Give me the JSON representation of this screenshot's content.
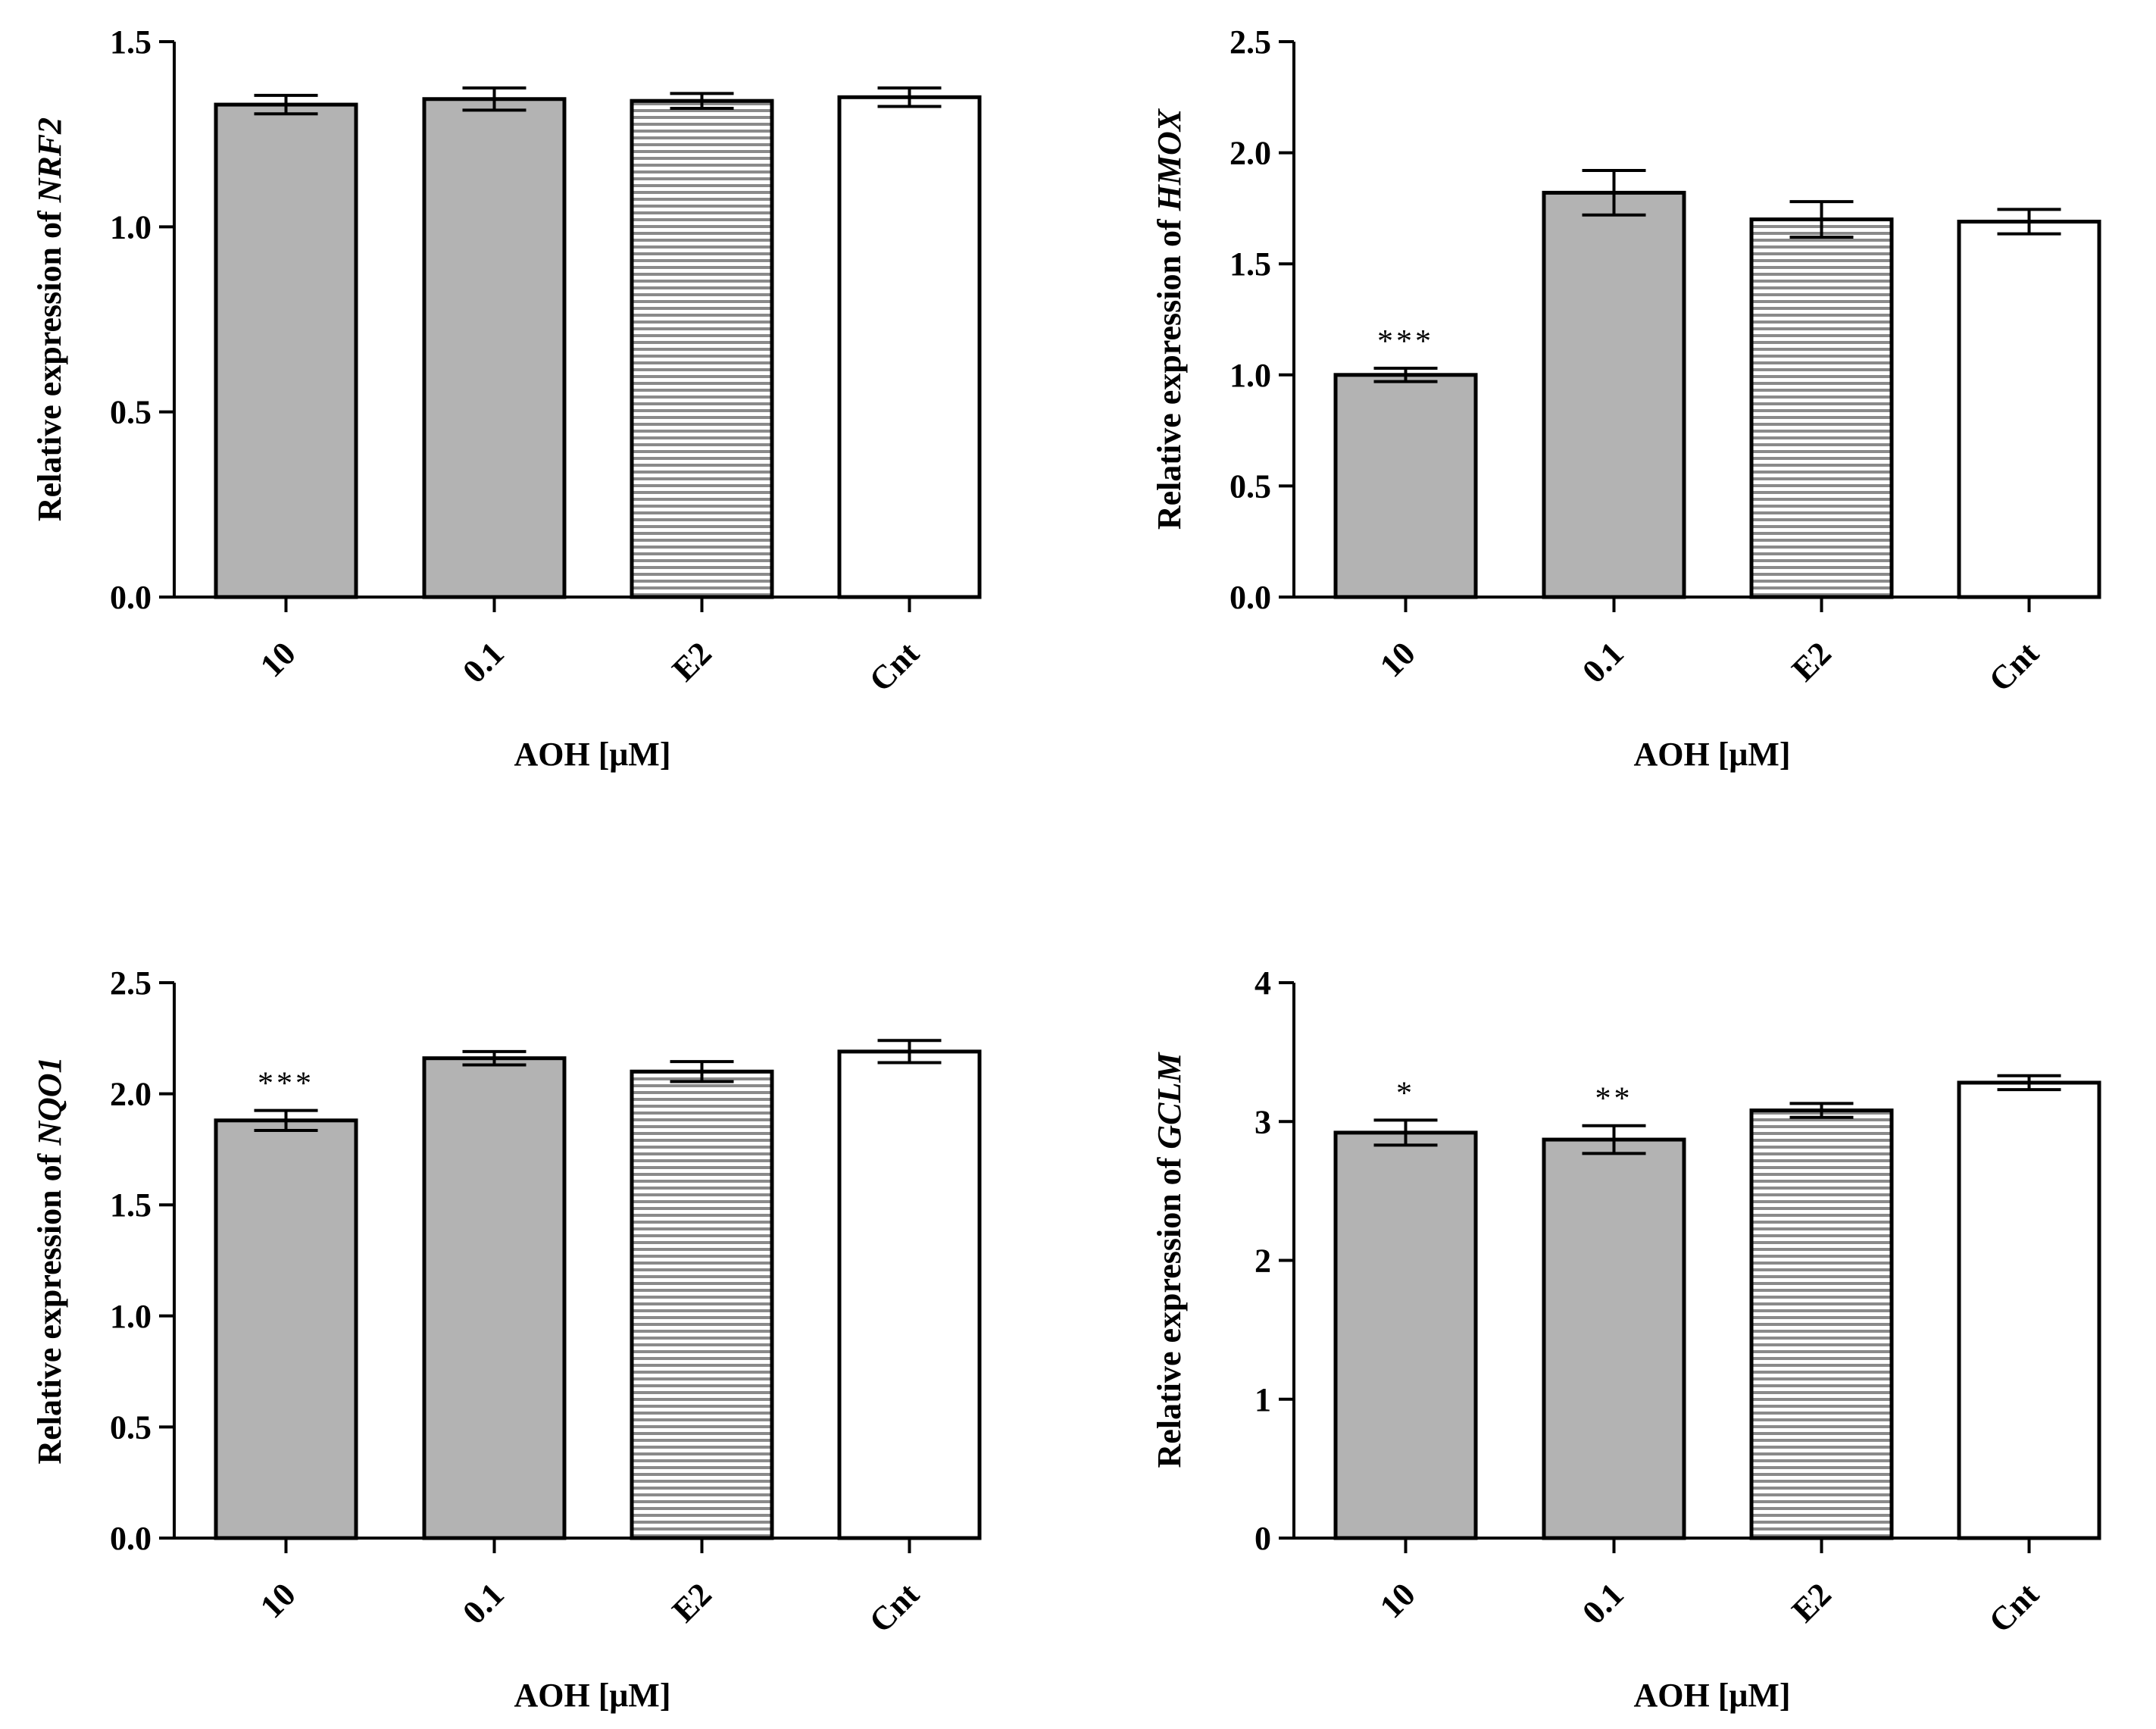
{
  "chart_data": [
    {
      "type": "bar",
      "ylabel_prefix": "Relative expression of ",
      "gene": "NRF2",
      "xlabel": "AOH [μM]",
      "categories": [
        "10",
        "0.1",
        "E2",
        "Cnt"
      ],
      "values": [
        1.33,
        1.345,
        1.34,
        1.35
      ],
      "errors": [
        0.025,
        0.03,
        0.02,
        0.025
      ],
      "significance": [
        "",
        "",
        "",
        ""
      ],
      "ylim": [
        0,
        1.5
      ],
      "yticks": [
        "0.0",
        "0.5",
        "1.0",
        "1.5"
      ],
      "ytick_values": [
        0,
        0.5,
        1.0,
        1.5
      ]
    },
    {
      "type": "bar",
      "ylabel_prefix": "Relative expression of ",
      "gene": "HMOX",
      "xlabel": "AOH [μM]",
      "categories": [
        "10",
        "0.1",
        "E2",
        "Cnt"
      ],
      "values": [
        1.0,
        1.82,
        1.7,
        1.69
      ],
      "errors": [
        0.03,
        0.1,
        0.08,
        0.055
      ],
      "significance": [
        "***",
        "",
        "",
        ""
      ],
      "ylim": [
        0,
        2.5
      ],
      "yticks": [
        "0.0",
        "0.5",
        "1.0",
        "1.5",
        "2.0",
        "2.5"
      ],
      "ytick_values": [
        0,
        0.5,
        1.0,
        1.5,
        2.0,
        2.5
      ]
    },
    {
      "type": "bar",
      "ylabel_prefix": "Relative expression of ",
      "gene": "NQO1",
      "xlabel": "AOH [μM]",
      "categories": [
        "10",
        "0.1",
        "E2",
        "Cnt"
      ],
      "values": [
        1.88,
        2.16,
        2.1,
        2.19
      ],
      "errors": [
        0.045,
        0.03,
        0.045,
        0.05
      ],
      "significance": [
        "***",
        "",
        "",
        ""
      ],
      "ylim": [
        0,
        2.5
      ],
      "yticks": [
        "0.0",
        "0.5",
        "1.0",
        "1.5",
        "2.0",
        "2.5"
      ],
      "ytick_values": [
        0,
        0.5,
        1.0,
        1.5,
        2.0,
        2.5
      ]
    },
    {
      "type": "bar",
      "ylabel_prefix": "Relative expression of ",
      "gene": "GCLM",
      "xlabel": "AOH [μM]",
      "categories": [
        "10",
        "0.1",
        "E2",
        "Cnt"
      ],
      "values": [
        2.92,
        2.87,
        3.08,
        3.28
      ],
      "errors": [
        0.09,
        0.1,
        0.05,
        0.05
      ],
      "significance": [
        "*",
        "**",
        "",
        ""
      ],
      "ylim": [
        0,
        4
      ],
      "yticks": [
        "0",
        "1",
        "2",
        "3",
        "4"
      ],
      "ytick_values": [
        0,
        1,
        2,
        3,
        4
      ]
    }
  ],
  "style": {
    "bar_fills": [
      "gray",
      "gray",
      "striped",
      "white"
    ],
    "gray_color": "#b3b3b3",
    "stripe_color": "#8a8a8a",
    "line_color": "#000000",
    "background": "#ffffff"
  }
}
